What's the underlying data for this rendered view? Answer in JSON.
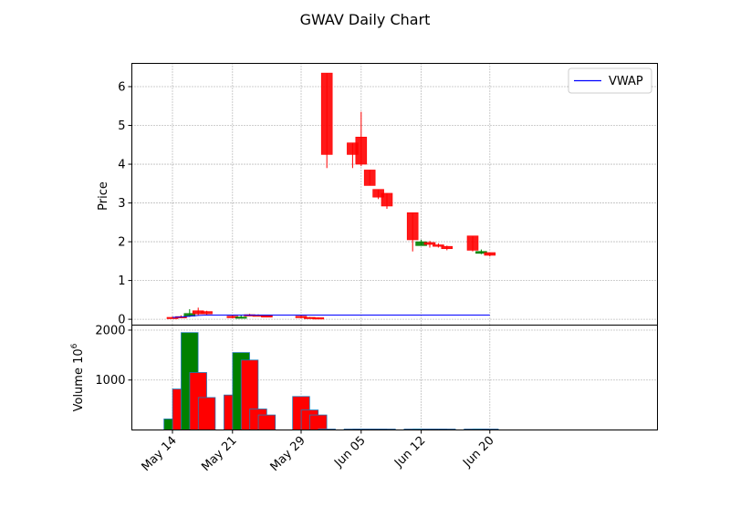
{
  "chart_data": [
    {
      "type": "candlestick",
      "title": "GWAV Daily Chart",
      "ylabel": "Price",
      "ylim": [
        -0.15,
        6.6
      ],
      "yticks": [
        "0",
        "1",
        "2",
        "3",
        "4",
        "5",
        "6"
      ],
      "grid": true,
      "legend": {
        "position": "top-right",
        "entries": [
          "VWAP"
        ]
      },
      "xticks": [
        "May 14",
        "May 21",
        "May 29",
        "Jun 05",
        "Jun 12",
        "Jun 20"
      ],
      "series": [
        {
          "name": "OHLC",
          "candles": [
            {
              "date": "May 14",
              "open": 0.05,
              "high": 0.07,
              "low": 0.03,
              "close": 0.04
            },
            {
              "date": "May 15",
              "open": 0.07,
              "high": 0.1,
              "low": 0.03,
              "close": 0.05
            },
            {
              "date": "May 16",
              "open": 0.08,
              "high": 0.26,
              "low": 0.06,
              "close": 0.15
            },
            {
              "date": "May 17",
              "open": 0.22,
              "high": 0.3,
              "low": 0.1,
              "close": 0.14
            },
            {
              "date": "May 18",
              "open": 0.2,
              "high": 0.22,
              "low": 0.12,
              "close": 0.14
            },
            {
              "date": "May 21",
              "open": 0.08,
              "high": 0.1,
              "low": 0.03,
              "close": 0.04
            },
            {
              "date": "May 22",
              "open": 0.05,
              "high": 0.1,
              "low": 0.03,
              "close": 0.06
            },
            {
              "date": "May 23",
              "open": 0.12,
              "high": 0.14,
              "low": 0.08,
              "close": 0.09
            },
            {
              "date": "May 24",
              "open": 0.11,
              "high": 0.13,
              "low": 0.08,
              "close": 0.09
            },
            {
              "date": "May 25",
              "open": 0.09,
              "high": 0.1,
              "low": 0.06,
              "close": 0.07
            },
            {
              "date": "May 29",
              "open": 0.08,
              "high": 0.1,
              "low": 0.02,
              "close": 0.04
            },
            {
              "date": "May 30",
              "open": 0.05,
              "high": 0.06,
              "low": 0.03,
              "close": 0.04
            },
            {
              "date": "May 31",
              "open": 0.04,
              "high": 0.05,
              "low": 0.02,
              "close": 0.03
            },
            {
              "date": "Jun 01",
              "open": 6.35,
              "high": 6.35,
              "low": 3.9,
              "close": 4.25
            },
            {
              "date": "Jun 04",
              "open": 4.55,
              "high": 4.55,
              "low": 3.9,
              "close": 4.25
            },
            {
              "date": "Jun 05",
              "open": 4.7,
              "high": 5.35,
              "low": 3.95,
              "close": 4.0
            },
            {
              "date": "Jun 06",
              "open": 3.85,
              "high": 3.85,
              "low": 3.45,
              "close": 3.45
            },
            {
              "date": "Jun 07",
              "open": 3.35,
              "high": 3.35,
              "low": 3.1,
              "close": 3.15
            },
            {
              "date": "Jun 08",
              "open": 3.25,
              "high": 3.25,
              "low": 2.85,
              "close": 2.92
            },
            {
              "date": "Jun 11",
              "open": 2.75,
              "high": 2.75,
              "low": 1.75,
              "close": 2.05
            },
            {
              "date": "Jun 12",
              "open": 1.9,
              "high": 2.05,
              "low": 1.9,
              "close": 2.0
            },
            {
              "date": "Jun 13",
              "open": 1.98,
              "high": 2.02,
              "low": 1.85,
              "close": 1.93
            },
            {
              "date": "Jun 14",
              "open": 1.92,
              "high": 1.96,
              "low": 1.85,
              "close": 1.88
            },
            {
              "date": "Jun 15",
              "open": 1.88,
              "high": 1.9,
              "low": 1.78,
              "close": 1.82
            },
            {
              "date": "Jun 18",
              "open": 2.15,
              "high": 2.15,
              "low": 1.75,
              "close": 1.78
            },
            {
              "date": "Jun 19",
              "open": 1.7,
              "high": 1.8,
              "low": 1.68,
              "close": 1.75
            },
            {
              "date": "Jun 20",
              "open": 1.72,
              "high": 1.72,
              "low": 1.62,
              "close": 1.65
            }
          ]
        },
        {
          "name": "VWAP",
          "color": "#0000ff",
          "values": [
            0.05,
            0.06,
            0.08,
            0.1,
            0.11,
            0.11,
            0.11,
            0.11,
            0.11,
            0.11,
            0.11,
            0.11,
            0.11,
            0.11,
            0.11,
            0.11,
            0.11,
            0.11,
            0.11,
            0.11,
            0.11,
            0.11,
            0.11,
            0.11,
            0.11,
            0.11,
            0.11
          ]
        }
      ],
      "colors": {
        "up": "#008000",
        "down": "#ff0000",
        "vwap": "#0000ff"
      }
    },
    {
      "type": "bar",
      "ylabel": "Volume  10^6",
      "ylabel_main": "Volume",
      "ylabel_exp": "10",
      "ylabel_sup": "6",
      "ylim": [
        0,
        2100
      ],
      "yticks": [
        "1000",
        "2000"
      ],
      "grid": true,
      "volume_bars": [
        {
          "date": "May 14",
          "value": 220,
          "direction": "up"
        },
        {
          "date": "May 15",
          "value": 820,
          "direction": "down"
        },
        {
          "date": "May 16",
          "value": 1950,
          "direction": "up"
        },
        {
          "date": "May 17",
          "value": 1150,
          "direction": "down"
        },
        {
          "date": "May 18",
          "value": 650,
          "direction": "down"
        },
        {
          "date": "May 21",
          "value": 700,
          "direction": "down"
        },
        {
          "date": "May 22",
          "value": 1550,
          "direction": "up"
        },
        {
          "date": "May 23",
          "value": 1400,
          "direction": "down"
        },
        {
          "date": "May 24",
          "value": 420,
          "direction": "down"
        },
        {
          "date": "May 25",
          "value": 300,
          "direction": "down"
        },
        {
          "date": "May 29",
          "value": 670,
          "direction": "down"
        },
        {
          "date": "May 30",
          "value": 400,
          "direction": "down"
        },
        {
          "date": "May 31",
          "value": 300,
          "direction": "down"
        },
        {
          "date": "Jun 01",
          "value": 0,
          "direction": "down"
        },
        {
          "date": "Jun 04",
          "value": 0,
          "direction": "down"
        },
        {
          "date": "Jun 05",
          "value": 0,
          "direction": "down"
        },
        {
          "date": "Jun 06",
          "value": 0,
          "direction": "down"
        },
        {
          "date": "Jun 07",
          "value": 0,
          "direction": "down"
        },
        {
          "date": "Jun 08",
          "value": 0,
          "direction": "down"
        },
        {
          "date": "Jun 11",
          "value": 0,
          "direction": "down"
        },
        {
          "date": "Jun 12",
          "value": 0,
          "direction": "up"
        },
        {
          "date": "Jun 13",
          "value": 0,
          "direction": "down"
        },
        {
          "date": "Jun 14",
          "value": 0,
          "direction": "down"
        },
        {
          "date": "Jun 15",
          "value": 0,
          "direction": "down"
        },
        {
          "date": "Jun 18",
          "value": 0,
          "direction": "down"
        },
        {
          "date": "Jun 19",
          "value": 0,
          "direction": "up"
        },
        {
          "date": "Jun 20",
          "value": 0,
          "direction": "down"
        }
      ]
    }
  ]
}
